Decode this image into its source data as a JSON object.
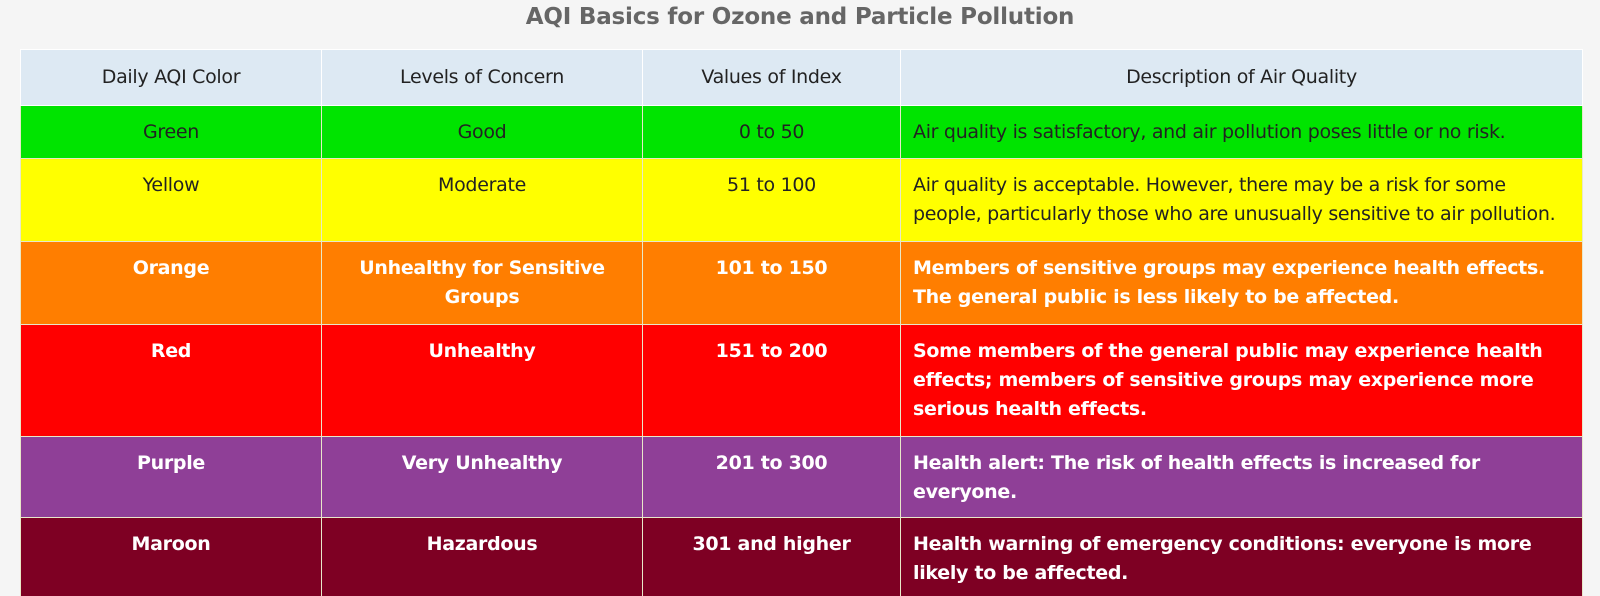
{
  "title": "AQI Basics for Ozone and Particle Pollution",
  "headers": [
    "Daily AQI Color",
    "Levels of Concern",
    "Values of Index",
    "Description of Air Quality"
  ],
  "rows": [
    {
      "key": "green",
      "bg": "#00e400",
      "fg": "#222222",
      "cells": [
        "Green",
        "Good",
        "0 to 50",
        "Air quality is satisfactory, and air pollution poses little or no risk."
      ]
    },
    {
      "key": "yellow",
      "bg": "#ffff00",
      "fg": "#222222",
      "cells": [
        "Yellow",
        "Moderate",
        "51 to 100",
        "Air quality is acceptable. However, there may be a risk for some people, particularly those who are unusually sensitive to air pollution."
      ]
    },
    {
      "key": "orange",
      "bg": "#ff7e00",
      "fg": "#ffffff",
      "cells": [
        "Orange",
        "Unhealthy for Sensitive Groups",
        "101 to 150",
        "Members of sensitive groups may experience health effects. The general public is less likely to be affected."
      ]
    },
    {
      "key": "red",
      "bg": "#ff0000",
      "fg": "#ffffff",
      "cells": [
        "Red",
        "Unhealthy",
        "151 to 200",
        "Some members of the general public may experience health effects; members of sensitive groups may experience more serious health effects."
      ]
    },
    {
      "key": "purple",
      "bg": "#8f3f97",
      "fg": "#ffffff",
      "cells": [
        "Purple",
        "Very Unhealthy",
        "201 to 300",
        "Health alert: The risk of health effects is increased for everyone."
      ]
    },
    {
      "key": "maroon",
      "bg": "#7e0023",
      "fg": "#ffffff",
      "cells": [
        "Maroon",
        "Hazardous",
        "301 and higher",
        "Health warning of emergency conditions: everyone is more likely to be affected."
      ]
    }
  ]
}
